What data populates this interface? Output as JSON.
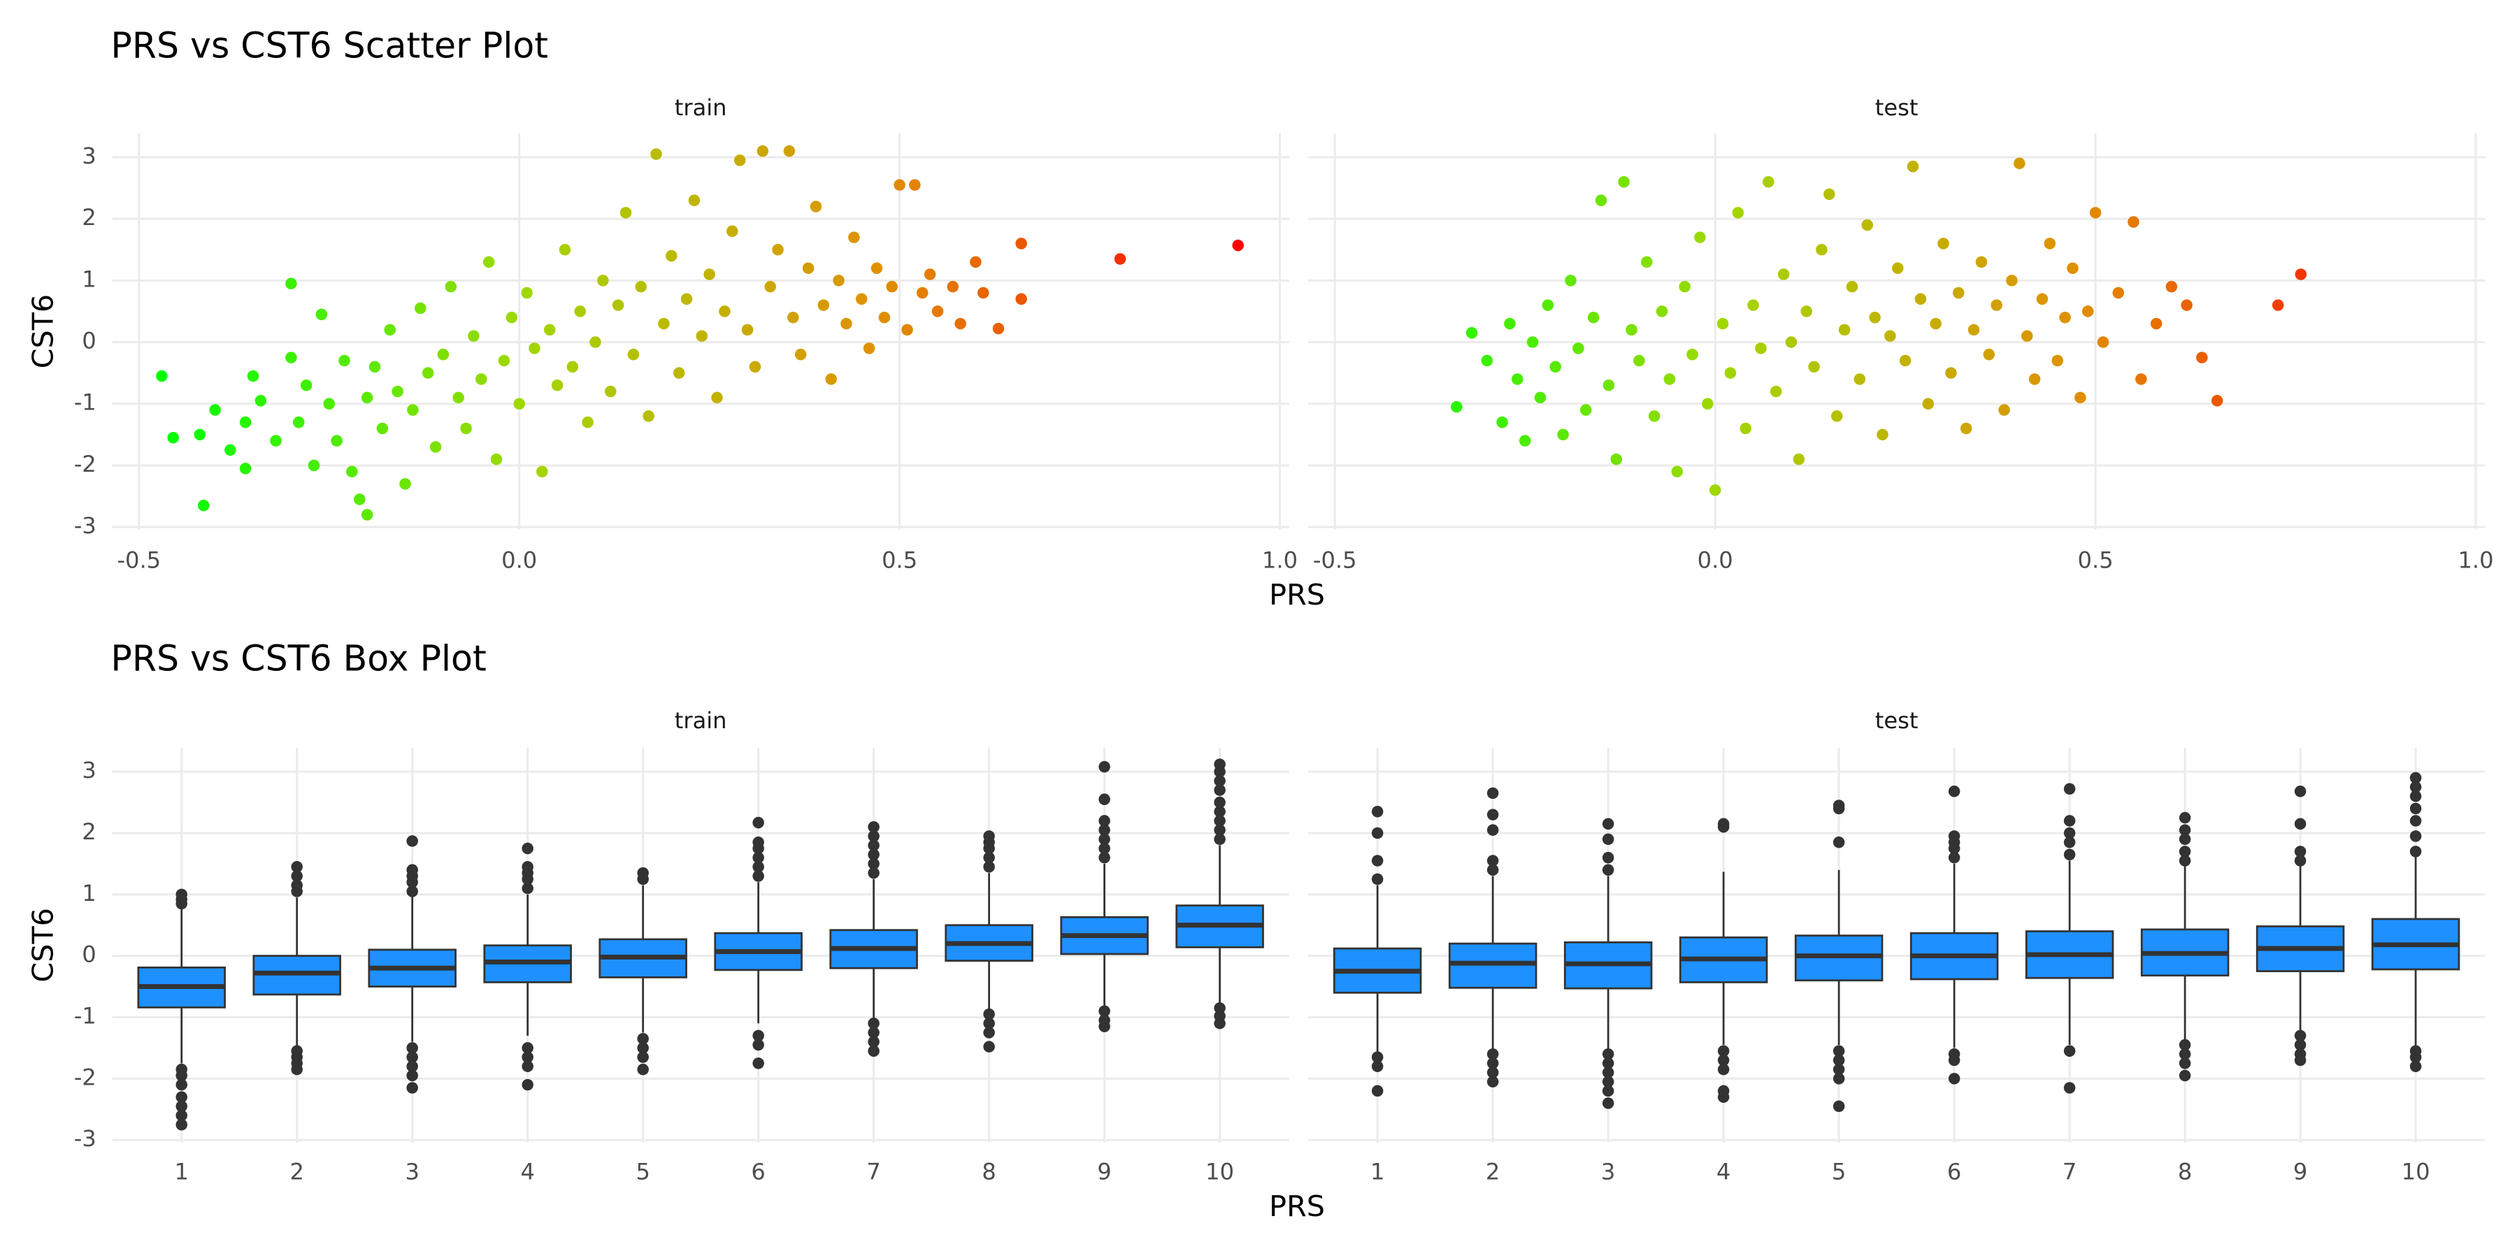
{
  "chart_data": [
    {
      "type": "scatter",
      "title": "PRS vs CST6 Scatter Plot",
      "xlabel": "PRS",
      "ylabel": "CST6",
      "xlim": [
        -0.535,
        1.012
      ],
      "xticks": [
        -0.5,
        {
          "value": 0,
          "label": "0.0"
        },
        0.5,
        {
          "value": 1,
          "label": "1.0"
        }
      ],
      "ylim": [
        -3.04,
        3.39
      ],
      "yticks": [
        -3,
        -2,
        -1,
        0,
        1,
        2,
        3
      ],
      "grid": true,
      "color_scale": [
        "#00ff00",
        "#a0d800",
        "#e09000",
        "#ff0000"
      ],
      "panels": [
        {
          "name": "train",
          "x": [
            -0.47,
            -0.455,
            -0.415,
            -0.42,
            -0.4,
            -0.38,
            -0.36,
            -0.36,
            -0.35,
            -0.34,
            -0.32,
            -0.3,
            -0.3,
            -0.29,
            -0.28,
            -0.27,
            -0.26,
            -0.25,
            -0.24,
            -0.23,
            -0.22,
            -0.21,
            -0.2,
            -0.2,
            -0.19,
            -0.18,
            -0.17,
            -0.16,
            -0.15,
            -0.14,
            -0.13,
            -0.12,
            -0.11,
            -0.1,
            -0.09,
            -0.08,
            -0.07,
            -0.06,
            -0.05,
            -0.04,
            -0.03,
            -0.02,
            -0.01,
            0.0,
            0.01,
            0.02,
            0.03,
            0.04,
            0.05,
            0.06,
            0.07,
            0.08,
            0.09,
            0.1,
            0.11,
            0.12,
            0.13,
            0.14,
            0.15,
            0.16,
            0.17,
            0.18,
            0.19,
            0.2,
            0.21,
            0.22,
            0.23,
            0.24,
            0.25,
            0.26,
            0.27,
            0.28,
            0.29,
            0.3,
            0.31,
            0.32,
            0.33,
            0.34,
            0.355,
            0.36,
            0.37,
            0.38,
            0.39,
            0.4,
            0.41,
            0.42,
            0.43,
            0.44,
            0.45,
            0.46,
            0.47,
            0.48,
            0.49,
            0.5,
            0.51,
            0.52,
            0.53,
            0.54,
            0.55,
            0.57,
            0.58,
            0.6,
            0.61,
            0.63,
            0.66,
            0.66,
            0.79,
            0.945
          ],
          "y": [
            -0.55,
            -1.55,
            -2.65,
            -1.5,
            -1.1,
            -1.75,
            -2.05,
            -1.3,
            -0.55,
            -0.95,
            -1.6,
            0.95,
            -0.25,
            -1.3,
            -0.7,
            -2.0,
            0.45,
            -1.0,
            -1.6,
            -0.3,
            -2.1,
            -2.55,
            -2.8,
            -0.9,
            -0.4,
            -1.4,
            0.2,
            -0.8,
            -2.3,
            -1.1,
            0.55,
            -0.5,
            -1.7,
            -0.2,
            0.9,
            -0.9,
            -1.4,
            0.1,
            -0.6,
            1.3,
            -1.9,
            -0.3,
            0.4,
            -1.0,
            0.8,
            -0.1,
            -2.1,
            0.2,
            -0.7,
            1.5,
            -0.4,
            0.5,
            -1.3,
            0.0,
            1.0,
            -0.8,
            0.6,
            2.1,
            -0.2,
            0.9,
            -1.2,
            3.05,
            0.3,
            1.4,
            -0.5,
            0.7,
            2.3,
            0.1,
            1.1,
            -0.9,
            0.5,
            1.8,
            2.95,
            0.2,
            -0.4,
            3.1,
            0.9,
            1.5,
            3.1,
            0.4,
            -0.2,
            1.2,
            2.2,
            0.6,
            -0.6,
            1.0,
            0.3,
            1.7,
            0.7,
            -0.1,
            1.2,
            0.4,
            0.9,
            2.55,
            0.2,
            2.55,
            0.8,
            1.1,
            0.5,
            0.9,
            0.3,
            1.3,
            0.8,
            0.22,
            0.7,
            1.6,
            1.35,
            1.57
          ]
        },
        {
          "name": "test",
          "x": [
            -0.34,
            -0.32,
            -0.3,
            -0.28,
            -0.27,
            -0.26,
            -0.25,
            -0.24,
            -0.23,
            -0.22,
            -0.21,
            -0.2,
            -0.19,
            -0.18,
            -0.17,
            -0.16,
            -0.15,
            -0.14,
            -0.13,
            -0.12,
            -0.11,
            -0.1,
            -0.09,
            -0.08,
            -0.07,
            -0.06,
            -0.05,
            -0.04,
            -0.03,
            -0.02,
            -0.01,
            0.0,
            0.01,
            0.02,
            0.03,
            0.04,
            0.05,
            0.06,
            0.07,
            0.08,
            0.09,
            0.1,
            0.11,
            0.12,
            0.13,
            0.14,
            0.15,
            0.16,
            0.17,
            0.18,
            0.19,
            0.2,
            0.21,
            0.22,
            0.23,
            0.24,
            0.25,
            0.26,
            0.27,
            0.28,
            0.29,
            0.3,
            0.31,
            0.32,
            0.33,
            0.34,
            0.35,
            0.36,
            0.37,
            0.38,
            0.39,
            0.4,
            0.41,
            0.42,
            0.43,
            0.44,
            0.45,
            0.46,
            0.47,
            0.48,
            0.49,
            0.5,
            0.51,
            0.53,
            0.55,
            0.56,
            0.58,
            0.6,
            0.62,
            0.64,
            0.66,
            0.74,
            0.77
          ],
          "y": [
            -1.05,
            0.15,
            -0.3,
            -1.3,
            0.3,
            -0.6,
            -1.6,
            0.0,
            -0.9,
            0.6,
            -0.4,
            -1.5,
            1.0,
            -0.1,
            -1.1,
            0.4,
            2.3,
            -0.7,
            -1.9,
            2.6,
            0.2,
            -0.3,
            1.3,
            -1.2,
            0.5,
            -0.6,
            -2.1,
            0.9,
            -0.2,
            1.7,
            -1.0,
            -2.4,
            0.3,
            -0.5,
            2.1,
            -1.4,
            0.6,
            -0.1,
            2.6,
            -0.8,
            1.1,
            0.0,
            -1.9,
            0.5,
            -0.4,
            1.5,
            2.4,
            -1.2,
            0.2,
            0.9,
            -0.6,
            1.9,
            0.4,
            -1.5,
            0.1,
            1.2,
            -0.3,
            2.85,
            0.7,
            -1.0,
            0.3,
            1.6,
            -0.5,
            0.8,
            -1.4,
            0.2,
            1.3,
            -0.2,
            0.6,
            -1.1,
            1.0,
            2.9,
            0.1,
            -0.6,
            0.7,
            1.6,
            -0.3,
            0.4,
            1.2,
            -0.9,
            0.5,
            2.1,
            0.0,
            0.8,
            1.95,
            -0.6,
            0.3,
            0.9,
            0.6,
            -0.25,
            -0.95,
            0.6,
            1.1
          ]
        }
      ]
    },
    {
      "type": "box",
      "title": "PRS vs CST6 Box Plot",
      "xlabel": "PRS",
      "ylabel": "CST6",
      "categories": [
        "1",
        "2",
        "3",
        "4",
        "5",
        "6",
        "7",
        "8",
        "9",
        "10"
      ],
      "ylim": [
        -3.04,
        3.39
      ],
      "yticks": [
        -3,
        -2,
        -1,
        0,
        1,
        2,
        3
      ],
      "grid": true,
      "color": "#1e90ff",
      "line_color": "#333333",
      "panels": [
        {
          "name": "train",
          "boxes": [
            {
              "low": -1.75,
              "q1": -0.84,
              "median": -0.5,
              "q3": -0.19,
              "high": 0.8,
              "outliers": [
                0.85,
                0.92,
                1.0,
                -1.85,
                -1.95,
                -2.1,
                -2.3,
                -2.45,
                -2.6,
                -2.75
              ]
            },
            {
              "low": -1.5,
              "q1": -0.63,
              "median": -0.28,
              "q3": 0.0,
              "high": 0.95,
              "outliers": [
                1.05,
                1.15,
                1.3,
                1.45,
                -1.55,
                -1.65,
                -1.75,
                -1.85
              ]
            },
            {
              "low": -1.4,
              "q1": -0.5,
              "median": -0.2,
              "q3": 0.1,
              "high": 0.98,
              "outliers": [
                1.05,
                1.2,
                1.3,
                1.4,
                1.87,
                -1.5,
                -1.65,
                -1.8,
                -1.95,
                -2.15
              ]
            },
            {
              "low": -1.3,
              "q1": -0.43,
              "median": -0.1,
              "q3": 0.17,
              "high": 1.0,
              "outliers": [
                1.1,
                1.25,
                1.35,
                1.45,
                1.75,
                -1.5,
                -1.65,
                -1.8,
                -2.1
              ]
            },
            {
              "low": -1.25,
              "q1": -0.35,
              "median": -0.02,
              "q3": 0.27,
              "high": 1.15,
              "outliers": [
                1.25,
                1.35,
                -1.35,
                -1.5,
                -1.65,
                -1.85
              ]
            },
            {
              "low": -1.1,
              "q1": -0.23,
              "median": 0.07,
              "q3": 0.37,
              "high": 1.2,
              "outliers": [
                1.3,
                1.45,
                1.6,
                1.75,
                1.85,
                2.17,
                -1.3,
                -1.45,
                -1.75
              ]
            },
            {
              "low": -1.05,
              "q1": -0.2,
              "median": 0.12,
              "q3": 0.42,
              "high": 1.25,
              "outliers": [
                1.35,
                1.5,
                1.65,
                1.8,
                1.95,
                2.1,
                -1.1,
                -1.25,
                -1.4,
                -1.55
              ]
            },
            {
              "low": -0.9,
              "q1": -0.08,
              "median": 0.2,
              "q3": 0.5,
              "high": 1.35,
              "outliers": [
                1.45,
                1.6,
                1.75,
                1.85,
                1.95,
                -0.95,
                -1.1,
                -1.25,
                -1.48
              ]
            },
            {
              "low": -0.85,
              "q1": 0.03,
              "median": 0.33,
              "q3": 0.63,
              "high": 1.5,
              "outliers": [
                1.6,
                1.75,
                1.9,
                2.05,
                2.2,
                2.55,
                3.08,
                -0.9,
                -1.05,
                -1.15
              ]
            },
            {
              "low": -0.8,
              "q1": 0.14,
              "median": 0.5,
              "q3": 0.82,
              "high": 1.8,
              "outliers": [
                1.9,
                2.05,
                2.2,
                2.35,
                2.5,
                2.7,
                2.85,
                3.0,
                3.12,
                -0.85,
                -0.98,
                -1.1
              ]
            }
          ]
        },
        {
          "name": "test",
          "boxes": [
            {
              "low": -1.6,
              "q1": -0.6,
              "median": -0.25,
              "q3": 0.12,
              "high": 1.15,
              "outliers": [
                1.25,
                1.55,
                2.0,
                2.35,
                -1.65,
                -1.8,
                -2.2
              ]
            },
            {
              "low": -1.55,
              "q1": -0.52,
              "median": -0.12,
              "q3": 0.2,
              "high": 1.3,
              "outliers": [
                1.4,
                1.55,
                2.05,
                2.3,
                2.65,
                -1.6,
                -1.75,
                -1.9,
                -2.05
              ]
            },
            {
              "low": -1.55,
              "q1": -0.53,
              "median": -0.13,
              "q3": 0.22,
              "high": 1.3,
              "outliers": [
                1.4,
                1.6,
                1.9,
                2.15,
                -1.6,
                -1.75,
                -1.9,
                -2.05,
                -2.2,
                -2.4
              ]
            },
            {
              "low": -1.45,
              "q1": -0.43,
              "median": -0.05,
              "q3": 0.3,
              "high": 1.37,
              "outliers": [
                2.1,
                2.15,
                -1.55,
                -1.7,
                -1.85,
                -2.2,
                -2.3
              ]
            },
            {
              "low": -1.45,
              "q1": -0.4,
              "median": 0.0,
              "q3": 0.33,
              "high": 1.4,
              "outliers": [
                1.85,
                2.4,
                2.45,
                -1.55,
                -1.7,
                -1.85,
                -2.0,
                -2.45
              ]
            },
            {
              "low": -1.5,
              "q1": -0.38,
              "median": 0.0,
              "q3": 0.37,
              "high": 1.5,
              "outliers": [
                1.6,
                1.75,
                1.85,
                1.95,
                2.68,
                -1.6,
                -1.7,
                -2.0
              ]
            },
            {
              "low": -1.45,
              "q1": -0.36,
              "median": 0.02,
              "q3": 0.4,
              "high": 1.55,
              "outliers": [
                1.65,
                1.85,
                2.0,
                2.2,
                2.72,
                -1.55,
                -2.15
              ]
            },
            {
              "low": -1.4,
              "q1": -0.32,
              "median": 0.04,
              "q3": 0.43,
              "high": 1.5,
              "outliers": [
                1.55,
                1.7,
                1.9,
                2.05,
                2.25,
                -1.45,
                -1.6,
                -1.75,
                -1.95
              ]
            },
            {
              "low": -1.25,
              "q1": -0.25,
              "median": 0.12,
              "q3": 0.48,
              "high": 1.5,
              "outliers": [
                1.55,
                1.7,
                2.15,
                2.68,
                -1.3,
                -1.45,
                -1.6,
                -1.7
              ]
            },
            {
              "low": -1.5,
              "q1": -0.22,
              "median": 0.18,
              "q3": 0.6,
              "high": 1.65,
              "outliers": [
                1.7,
                1.95,
                2.2,
                2.4,
                2.6,
                2.75,
                2.9,
                -1.55,
                -1.65,
                -1.8
              ]
            }
          ]
        }
      ]
    }
  ]
}
